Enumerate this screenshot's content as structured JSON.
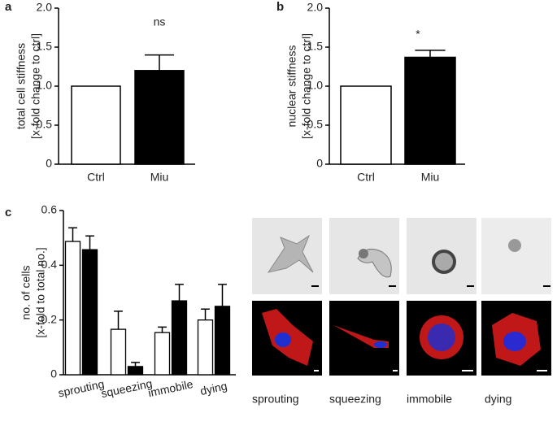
{
  "panel_labels": [
    "a",
    "b",
    "c"
  ],
  "chart_data": [
    {
      "type": "bar",
      "ylabel": [
        "total cell stiffness",
        "[x-fold  change to ctrl]"
      ],
      "categories": [
        "Ctrl",
        "Miu"
      ],
      "values": [
        1.0,
        1.2
      ],
      "errors": [
        null,
        0.2
      ],
      "colors": [
        "#ffffff",
        "#000000"
      ],
      "annotation": "ns",
      "ylim": [
        0,
        2
      ],
      "yticks": [
        0,
        0.5,
        {
          "value": 1,
          "label": "1.0"
        },
        1.5,
        {
          "value": 2,
          "label": "2.0"
        }
      ]
    },
    {
      "type": "bar",
      "ylabel": [
        "nuclear  stiffness",
        "[x-fold  change to ctrl]"
      ],
      "categories": [
        "Ctrl",
        "Miu"
      ],
      "values": [
        1.0,
        1.37
      ],
      "errors": [
        null,
        0.09
      ],
      "colors": [
        "#ffffff",
        "#000000"
      ],
      "annotation": "*",
      "ylim": [
        0,
        2
      ],
      "yticks": [
        0,
        0.5,
        {
          "value": 1,
          "label": "1.0"
        },
        1.5,
        {
          "value": 2,
          "label": "2.0"
        }
      ]
    },
    {
      "type": "grouped-bar",
      "ylabel": [
        "no. of cells",
        "[x-fold to total no.]"
      ],
      "categories": [
        "sprouting",
        "squeezing",
        "immobile",
        "dying"
      ],
      "series": [
        {
          "color": "#ffffff",
          "values": [
            0.487,
            0.166,
            0.154,
            0.2
          ],
          "errors": [
            0.05,
            0.066,
            0.02,
            0.04
          ]
        },
        {
          "color": "#000000",
          "values": [
            0.457,
            0.03,
            0.27,
            0.25
          ],
          "errors": [
            0.05,
            0.015,
            0.06,
            0.08
          ]
        }
      ],
      "ylim": [
        0,
        0.6
      ],
      "yticks": [
        0,
        0.2,
        0.4,
        0.6
      ]
    }
  ],
  "images": {
    "labels": [
      "sprouting",
      "squeezing",
      "immobile",
      "dying"
    ]
  }
}
